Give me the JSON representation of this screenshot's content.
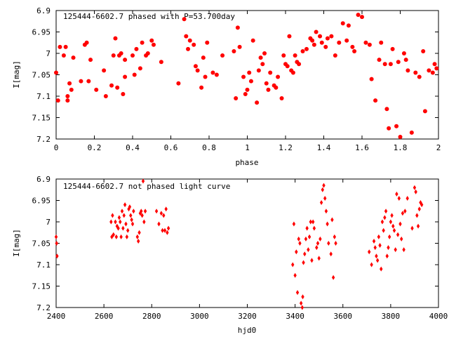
{
  "chart_data": [
    {
      "type": "scatter",
      "title": "125444-6602.7 phased with P=53.700day",
      "xlabel": "phase",
      "ylabel": "I[mag]",
      "xlim": [
        0,
        2
      ],
      "ylim": [
        6.9,
        7.2
      ],
      "y_inverted": true,
      "xticks": [
        0,
        0.2,
        0.4,
        0.6,
        0.8,
        1,
        1.2,
        1.4,
        1.6,
        1.8,
        2
      ],
      "xtick_labels": [
        "0",
        "0.2",
        "0.4",
        "0.6",
        "0.8",
        "1",
        "1.2",
        "1.4",
        "1.6",
        "1.8",
        "2"
      ],
      "yticks": [
        6.9,
        6.95,
        7.0,
        7.05,
        7.1,
        7.15,
        7.2
      ],
      "ytick_labels": [
        "6.9",
        "6.95",
        "7",
        "7.05",
        "7.1",
        "7.15",
        "7.2"
      ],
      "grid": false,
      "marker": "filled-circle",
      "color": "#ff0000",
      "series": [
        {
          "x": [
            0.0,
            0.01,
            0.02,
            0.04,
            0.05,
            0.06,
            0.06,
            0.07,
            0.08,
            0.09,
            0.13,
            0.15,
            0.16,
            0.17,
            0.18,
            0.21,
            0.25,
            0.26,
            0.29,
            0.3,
            0.31,
            0.32,
            0.33,
            0.34,
            0.35,
            0.36,
            0.36,
            0.4,
            0.41,
            0.42,
            0.44,
            0.45,
            0.47,
            0.48,
            0.5,
            0.51,
            0.55,
            0.64,
            0.67,
            0.68,
            0.69,
            0.7,
            0.72,
            0.73,
            0.74,
            0.76,
            0.77,
            0.78,
            0.79,
            0.82,
            0.84,
            0.87,
            0.93,
            0.94,
            0.95,
            0.96,
            0.98,
            0.99,
            1.0,
            1.01,
            1.02,
            1.03,
            1.05,
            1.06,
            1.07,
            1.08,
            1.09,
            1.1,
            1.11,
            1.12,
            1.14,
            1.15,
            1.16,
            1.18,
            1.19,
            1.2,
            1.21,
            1.22,
            1.23,
            1.24,
            1.25,
            1.26,
            1.27,
            1.29,
            1.31,
            1.33,
            1.34,
            1.35,
            1.36,
            1.38,
            1.39,
            1.41,
            1.42,
            1.44,
            1.46,
            1.48,
            1.5,
            1.52,
            1.53,
            1.55,
            1.56,
            1.58,
            1.6,
            1.62,
            1.64,
            1.65,
            1.67,
            1.69,
            1.7,
            1.72,
            1.73,
            1.74,
            1.75,
            1.76,
            1.78,
            1.79,
            1.8,
            1.82,
            1.83,
            1.84,
            1.86,
            1.88,
            1.9,
            1.92,
            1.93,
            1.95,
            1.97,
            1.98,
            1.99
          ],
          "y": [
            7.045,
            7.11,
            6.985,
            7.005,
            6.985,
            7.1,
            7.11,
            7.07,
            7.085,
            7.01,
            7.065,
            6.98,
            6.975,
            7.065,
            7.015,
            7.085,
            7.04,
            7.1,
            7.075,
            7.005,
            6.965,
            7.08,
            7.005,
            7.0,
            7.095,
            7.015,
            7.055,
            7.005,
            7.05,
            6.99,
            7.035,
            6.975,
            7.005,
            7.0,
            6.97,
            6.98,
            7.02,
            7.07,
            6.92,
            6.96,
            6.99,
            6.97,
            6.98,
            7.03,
            7.04,
            7.08,
            7.01,
            7.055,
            6.975,
            7.045,
            7.05,
            7.005,
            6.995,
            7.105,
            6.94,
            6.985,
            7.055,
            7.095,
            7.085,
            7.045,
            7.065,
            6.97,
            7.115,
            7.04,
            7.01,
            7.025,
            7.0,
            7.07,
            7.085,
            7.045,
            7.075,
            7.08,
            7.055,
            7.105,
            7.005,
            7.025,
            7.03,
            6.96,
            7.04,
            7.045,
            7.005,
            7.02,
            7.025,
            6.995,
            6.99,
            6.965,
            6.97,
            6.98,
            6.95,
            6.96,
            6.975,
            6.985,
            6.965,
            6.96,
            7.005,
            6.975,
            6.93,
            6.97,
            6.935,
            6.985,
            6.995,
            6.91,
            6.915,
            6.975,
            6.98,
            7.06,
            7.11,
            7.015,
            6.975,
            7.025,
            7.13,
            7.175,
            7.025,
            6.99,
            7.17,
            7.02,
            7.195,
            7.0,
            7.015,
            7.04,
            7.185,
            7.045,
            7.055,
            6.995,
            7.135,
            7.04,
            7.045,
            7.025,
            7.035
          ]
        }
      ]
    },
    {
      "type": "scatter",
      "title": "125444-6602.7 not phased light curve",
      "xlabel": "hjd0",
      "ylabel": "I[mag]",
      "xlim": [
        2400,
        4000
      ],
      "ylim": [
        6.9,
        7.2
      ],
      "y_inverted": true,
      "xticks": [
        2400,
        2600,
        2800,
        3000,
        3200,
        3400,
        3600,
        3800,
        4000
      ],
      "xtick_labels": [
        "2400",
        "2600",
        "2800",
        "3000",
        "3200",
        "3400",
        "3600",
        "3800",
        "4000"
      ],
      "yticks": [
        6.9,
        6.95,
        7.0,
        7.05,
        7.1,
        7.15,
        7.2
      ],
      "ytick_labels": [
        "6.9",
        "6.95",
        "7",
        "7.05",
        "7.1",
        "7.15",
        "7.2"
      ],
      "grid": false,
      "marker": "diamond",
      "color": "#ff0000",
      "series": [
        {
          "x": [
            2400,
            2402,
            2404,
            2630,
            2633,
            2636,
            2640,
            2648,
            2652,
            2655,
            2660,
            2664,
            2668,
            2672,
            2676,
            2680,
            2684,
            2688,
            2692,
            2696,
            2700,
            2704,
            2708,
            2712,
            2716,
            2720,
            2724,
            2740,
            2744,
            2748,
            2752,
            2756,
            2760,
            2764,
            2768,
            2773,
            2820,
            2830,
            2840,
            2845,
            2850,
            2855,
            2860,
            2865,
            2870,
            3390,
            3395,
            3400,
            3405,
            3410,
            3415,
            3420,
            3425,
            3430,
            3432,
            3435,
            3440,
            3445,
            3450,
            3455,
            3460,
            3465,
            3470,
            3475,
            3480,
            3490,
            3495,
            3500,
            3505,
            3510,
            3515,
            3520,
            3525,
            3530,
            3535,
            3540,
            3550,
            3555,
            3560,
            3565,
            3570,
            3710,
            3720,
            3730,
            3735,
            3740,
            3745,
            3750,
            3755,
            3760,
            3765,
            3770,
            3775,
            3780,
            3785,
            3790,
            3795,
            3800,
            3805,
            3810,
            3815,
            3820,
            3825,
            3830,
            3835,
            3840,
            3845,
            3850,
            3855,
            3860,
            3870,
            3890,
            3900,
            3905,
            3910,
            3915,
            3920,
            3925,
            3930
          ],
          "y": [
            7.035,
            7.05,
            7.08,
            7.0,
            7.035,
            6.985,
            7.03,
            7.0,
            7.035,
            7.01,
            7.015,
            6.99,
            7.0,
            7.035,
            6.975,
            7.015,
            6.985,
            6.96,
            7.005,
            7.035,
            7.02,
            6.97,
            6.965,
            6.985,
            6.995,
            7.005,
            6.975,
            7.035,
            7.045,
            7.025,
            6.98,
            6.975,
            6.985,
            6.905,
            7.0,
            6.975,
            6.975,
            7.005,
            6.98,
            7.02,
            6.985,
            7.02,
            6.97,
            7.025,
            7.015,
            7.1,
            7.005,
            7.125,
            7.07,
            7.165,
            7.04,
            7.05,
            7.19,
            7.2,
            7.175,
            7.095,
            7.075,
            7.04,
            7.015,
            7.065,
            7.035,
            7.0,
            7.09,
            7.0,
            7.015,
            7.06,
            7.05,
            7.085,
            7.04,
            6.955,
            6.925,
            6.915,
            6.945,
            6.975,
            7.005,
            7.05,
            7.075,
            6.995,
            7.13,
            7.035,
            7.05,
            7.07,
            7.1,
            7.045,
            7.06,
            7.08,
            7.09,
            7.035,
            7.055,
            7.11,
            7.0,
            7.02,
            6.99,
            6.975,
            7.08,
            7.06,
            7.035,
            7.0,
            6.985,
            7.01,
            7.02,
            7.065,
            6.935,
            7.03,
            6.945,
            7.005,
            7.04,
            6.98,
            7.065,
            6.975,
            6.945,
            7.015,
            6.92,
            6.93,
            6.985,
            7.01,
            6.97,
            6.955,
            6.96
          ]
        }
      ]
    }
  ]
}
